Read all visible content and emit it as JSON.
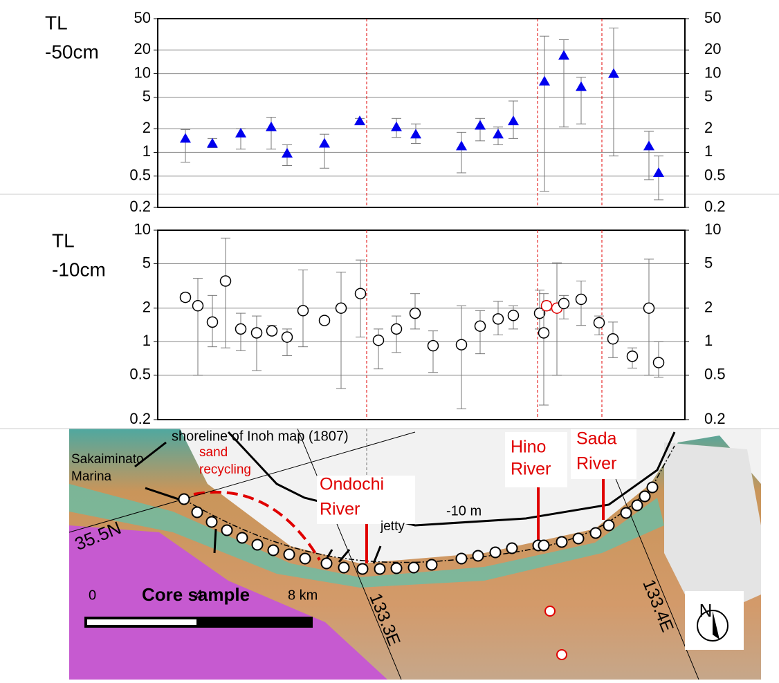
{
  "chart_data": [
    {
      "type": "errorbar",
      "ylabel_lines": [
        "TL",
        "-50cm"
      ],
      "marker": "triangle",
      "log_y": true,
      "grid": true,
      "ylim": [
        0.2,
        50
      ],
      "yticks": [
        0.2,
        0.5,
        1,
        2,
        5,
        10,
        20,
        50
      ],
      "categories": [
        null,
        null,
        null,
        null,
        null,
        null,
        null,
        null,
        null,
        null,
        null,
        null,
        null,
        null,
        null,
        null,
        null,
        null,
        null
      ],
      "series": [
        {
          "color": "#0000ee",
          "values": [
            1.5,
            1.3,
            1.75,
            2.1,
            0.97,
            1.3,
            2.5,
            2.1,
            1.7,
            1.2,
            2.2,
            1.7,
            2.5,
            8,
            17,
            6.8,
            10,
            1.2,
            0.55
          ],
          "error_low": [
            0.75,
            1.15,
            1.1,
            1.1,
            0.68,
            0.63,
            2.3,
            1.55,
            1.3,
            0.55,
            1.4,
            1.25,
            1.5,
            0.32,
            2.1,
            2.3,
            0.9,
            0.45,
            0.25
          ],
          "error_high": [
            1.95,
            1.5,
            2.0,
            2.8,
            1.25,
            1.7,
            2.7,
            2.7,
            2.3,
            1.8,
            2.7,
            2.1,
            4.5,
            30,
            27,
            9,
            38,
            1.85,
            0.9
          ]
        }
      ]
    },
    {
      "type": "errorbar",
      "ylabel_lines": [
        "TL",
        "-10cm"
      ],
      "marker": "circle",
      "log_y": true,
      "grid": true,
      "ylim": [
        0.2,
        10
      ],
      "yticks": [
        0.2,
        0.5,
        1,
        2,
        5,
        10
      ],
      "categories": [
        null,
        null,
        null,
        null,
        null,
        null,
        null,
        null,
        null,
        null,
        null,
        null,
        null,
        null,
        null,
        null,
        null,
        null,
        null,
        null,
        null,
        null,
        null,
        null,
        null,
        null,
        null,
        null,
        null,
        null,
        null
      ],
      "series": [
        {
          "color": "#000000",
          "point_colors": [
            "#000000",
            "#000000",
            "#000000",
            "#000000",
            "#000000",
            "#000000",
            "#000000",
            "#000000",
            "#000000",
            "#000000",
            "#000000",
            "#000000",
            "#000000",
            "#000000",
            "#000000",
            "#000000",
            "#000000",
            "#000000",
            "#000000",
            "#000000",
            "#000000",
            "#000000",
            "#e00000",
            "#e00000",
            "#000000",
            "#000000",
            "#000000",
            "#000000",
            "#000000",
            "#000000",
            "#000000"
          ],
          "values": [
            2.5,
            2.1,
            1.5,
            3.5,
            1.3,
            1.2,
            1.25,
            1.1,
            1.9,
            1.55,
            2.0,
            2.7,
            1.03,
            1.3,
            1.8,
            0.92,
            0.94,
            1.38,
            1.6,
            1.72,
            1.8,
            1.2,
            2.1,
            2.0,
            2.2,
            2.4,
            1.48,
            1.06,
            0.74,
            2.0,
            0.65
          ],
          "error_low": [
            2.3,
            0.5,
            0.9,
            0.88,
            0.83,
            0.55,
            1.15,
            0.75,
            0.9,
            1.45,
            0.38,
            1.1,
            0.57,
            0.8,
            1.3,
            0.53,
            0.25,
            0.78,
            1.15,
            1.3,
            1.3,
            0.27,
            1.9,
            0.5,
            1.6,
            1.4,
            1.15,
            0.72,
            0.58,
            0.5,
            0.48
          ],
          "error_high": [
            2.7,
            3.7,
            2.6,
            8.5,
            1.8,
            1.7,
            1.4,
            1.3,
            4.4,
            1.65,
            4.2,
            5.4,
            1.3,
            1.7,
            2.7,
            1.25,
            2.1,
            1.9,
            2.3,
            2.1,
            2.9,
            2.7,
            2.3,
            5.1,
            2.6,
            3.5,
            1.7,
            1.5,
            0.88,
            5.5,
            1.0
          ]
        }
      ]
    }
  ],
  "map": {
    "labels": [
      "shoreline of Inoh map (1807)",
      "sand",
      "recycling",
      "Sakaiminato",
      "Marina",
      "Ondochi",
      "River",
      "jetty",
      "-10 m",
      "Hino",
      "River",
      "Sada",
      "River",
      "35.5N",
      "Core sample",
      "0",
      "4",
      "8 km",
      "133.3E",
      "133.4E",
      "N"
    ]
  }
}
